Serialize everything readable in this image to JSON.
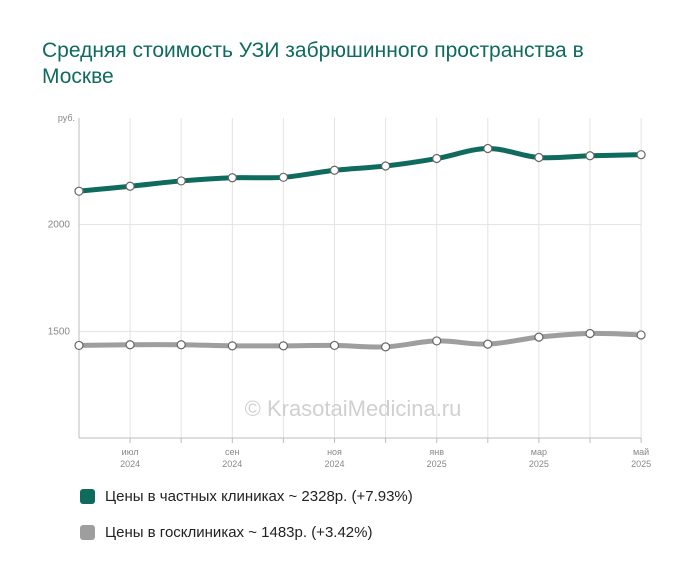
{
  "title": "Средняя стоимость УЗИ забрюшинного пространства в Москве",
  "watermark": "© KrasotaiMedicina.ru",
  "colors": {
    "private": "#0f6b5e",
    "public": "#9e9e9e"
  },
  "legend": [
    {
      "label": "Цены в частных клиниках ~ 2328р. (+7.93%)"
    },
    {
      "label": "Цены в госклиниках ~ 1483р. (+3.42%)"
    }
  ],
  "chart_data": {
    "type": "line",
    "title": "Средняя стоимость УЗИ забрюшинного пространства в Москве",
    "ylabel": "руб.",
    "ylim": [
      1000,
      2500
    ],
    "yticks": [
      {
        "value": 2000,
        "label": "2000"
      },
      {
        "value": 1500,
        "label": "1500"
      }
    ],
    "x": [
      "2024-06",
      "2024-07",
      "2024-08",
      "2024-09",
      "2024-10",
      "2024-11",
      "2024-12",
      "2025-01",
      "2025-02",
      "2025-03",
      "2025-04",
      "2025-05"
    ],
    "xtick_labels": [
      {
        "index": 1,
        "month": "июл",
        "year": "2024"
      },
      {
        "index": 3,
        "month": "сен",
        "year": "2024"
      },
      {
        "index": 5,
        "month": "ноя",
        "year": "2024"
      },
      {
        "index": 7,
        "month": "янв",
        "year": "2025"
      },
      {
        "index": 9,
        "month": "мар",
        "year": "2025"
      },
      {
        "index": 11,
        "month": "май",
        "year": "2025"
      }
    ],
    "grid": true,
    "legend_position": "bottom-left",
    "series": [
      {
        "name": "Цены в частных клиниках ~ 2328р. (+7.93%)",
        "color": "#0f6b5e",
        "values": [
          2157,
          2180,
          2205,
          2220,
          2222,
          2255,
          2275,
          2310,
          2357,
          2315,
          2323,
          2328
        ]
      },
      {
        "name": "Цены в госклиниках ~ 1483р. (+3.42%)",
        "color": "#9e9e9e",
        "values": [
          1434,
          1437,
          1437,
          1432,
          1432,
          1434,
          1427,
          1455,
          1440,
          1473,
          1490,
          1483
        ]
      }
    ]
  }
}
